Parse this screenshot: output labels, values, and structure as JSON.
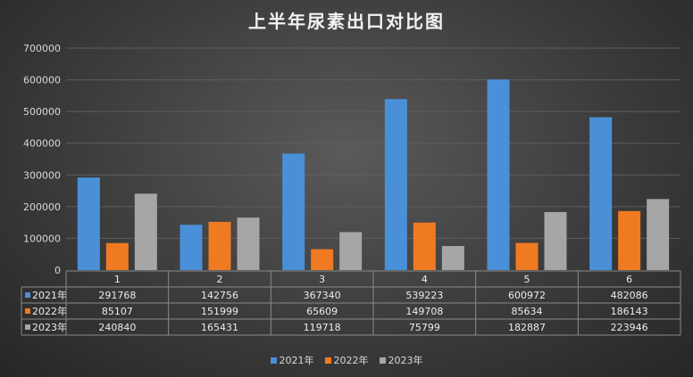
{
  "chart_data": {
    "type": "bar",
    "title": "上半年尿素出口对比图",
    "categories": [
      "1",
      "2",
      "3",
      "4",
      "5",
      "6"
    ],
    "series": [
      {
        "name": "2021年",
        "color": "#4a90d9",
        "values": [
          291768,
          142756,
          367340,
          539223,
          600972,
          482086
        ]
      },
      {
        "name": "2022年",
        "color": "#f07a22",
        "values": [
          85107,
          151999,
          65609,
          149708,
          85634,
          186143
        ]
      },
      {
        "name": "2023年",
        "color": "#a6a6a6",
        "values": [
          240840,
          165431,
          119718,
          75799,
          182887,
          223946
        ]
      }
    ],
    "ylim": [
      0,
      700000
    ],
    "yticks": [
      "0",
      "100000",
      "200000",
      "300000",
      "400000",
      "500000",
      "600000",
      "700000"
    ],
    "grid": true,
    "legend_position": "bottom",
    "data_table": true
  }
}
